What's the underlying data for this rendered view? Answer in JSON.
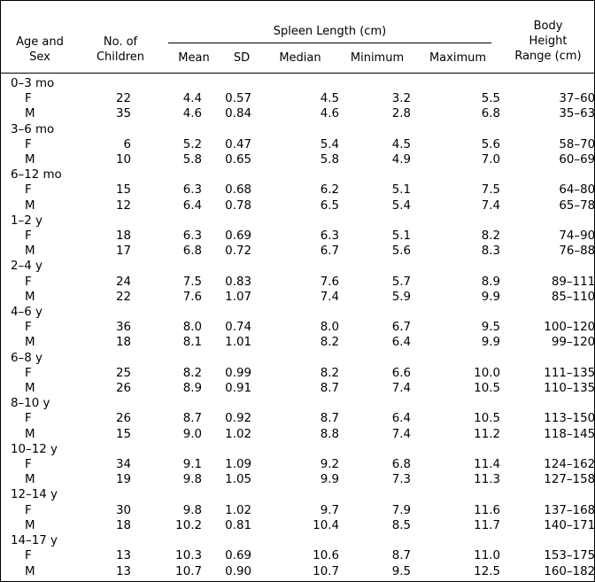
{
  "header": {
    "age_sex": [
      "Age and",
      "Sex"
    ],
    "children": [
      "No. of",
      "Children"
    ],
    "spleen_length": "Spleen Length (cm)",
    "mean": "Mean",
    "sd": "SD",
    "median": "Median",
    "minimum": "Minimum",
    "maximum": "Maximum",
    "body_height": [
      "Body",
      "Height",
      "Range (cm)"
    ]
  },
  "groups": [
    {
      "age": "0–3 mo",
      "rows": [
        {
          "sex": "F",
          "n": "22",
          "mean": "4.4",
          "sd": "0.57",
          "median": "4.5",
          "min": "3.2",
          "max": "5.5",
          "height": "37–60"
        },
        {
          "sex": "M",
          "n": "35",
          "mean": "4.6",
          "sd": "0.84",
          "median": "4.6",
          "min": "2.8",
          "max": "6.8",
          "height": "35–63"
        }
      ]
    },
    {
      "age": "3–6 mo",
      "rows": [
        {
          "sex": "F",
          "n": "6",
          "mean": "5.2",
          "sd": "0.47",
          "median": "5.4",
          "min": "4.5",
          "max": "5.6",
          "height": "58–70"
        },
        {
          "sex": "M",
          "n": "10",
          "mean": "5.8",
          "sd": "0.65",
          "median": "5.8",
          "min": "4.9",
          "max": "7.0",
          "height": "60–69"
        }
      ]
    },
    {
      "age": "6–12 mo",
      "rows": [
        {
          "sex": "F",
          "n": "15",
          "mean": "6.3",
          "sd": "0.68",
          "median": "6.2",
          "min": "5.1",
          "max": "7.5",
          "height": "64–80"
        },
        {
          "sex": "M",
          "n": "12",
          "mean": "6.4",
          "sd": "0.78",
          "median": "6.5",
          "min": "5.4",
          "max": "7.4",
          "height": "65–78"
        }
      ]
    },
    {
      "age": "1–2 y",
      "rows": [
        {
          "sex": "F",
          "n": "18",
          "mean": "6.3",
          "sd": "0.69",
          "median": "6.3",
          "min": "5.1",
          "max": "8.2",
          "height": "74–90"
        },
        {
          "sex": "M",
          "n": "17",
          "mean": "6.8",
          "sd": "0.72",
          "median": "6.7",
          "min": "5.6",
          "max": "8.3",
          "height": "76–88"
        }
      ]
    },
    {
      "age": "2–4 y",
      "rows": [
        {
          "sex": "F",
          "n": "24",
          "mean": "7.5",
          "sd": "0.83",
          "median": "7.6",
          "min": "5.7",
          "max": "8.9",
          "height": "89–111"
        },
        {
          "sex": "M",
          "n": "22",
          "mean": "7.6",
          "sd": "1.07",
          "median": "7.4",
          "min": "5.9",
          "max": "9.9",
          "height": "85–110"
        }
      ]
    },
    {
      "age": "4–6 y",
      "rows": [
        {
          "sex": "F",
          "n": "36",
          "mean": "8.0",
          "sd": "0.74",
          "median": "8.0",
          "min": "6.7",
          "max": "9.5",
          "height": "100–120"
        },
        {
          "sex": "M",
          "n": "18",
          "mean": "8.1",
          "sd": "1.01",
          "median": "8.2",
          "min": "6.4",
          "max": "9.9",
          "height": "99–120"
        }
      ]
    },
    {
      "age": "6–8 y",
      "rows": [
        {
          "sex": "F",
          "n": "25",
          "mean": "8.2",
          "sd": "0.99",
          "median": "8.2",
          "min": "6.6",
          "max": "10.0",
          "height": "111–135"
        },
        {
          "sex": "M",
          "n": "26",
          "mean": "8.9",
          "sd": "0.91",
          "median": "8.7",
          "min": "7.4",
          "max": "10.5",
          "height": "110–135"
        }
      ]
    },
    {
      "age": "8–10 y",
      "rows": [
        {
          "sex": "F",
          "n": "26",
          "mean": "8.7",
          "sd": "0.92",
          "median": "8.7",
          "min": "6.4",
          "max": "10.5",
          "height": "113–150"
        },
        {
          "sex": "M",
          "n": "15",
          "mean": "9.0",
          "sd": "1.02",
          "median": "8.8",
          "min": "7.4",
          "max": "11.2",
          "height": "118–145"
        }
      ]
    },
    {
      "age": "10–12 y",
      "rows": [
        {
          "sex": "F",
          "n": "34",
          "mean": "9.1",
          "sd": "1.09",
          "median": "9.2",
          "min": "6.8",
          "max": "11.4",
          "height": "124–162"
        },
        {
          "sex": "M",
          "n": "19",
          "mean": "9.8",
          "sd": "1.05",
          "median": "9.9",
          "min": "7.3",
          "max": "11.3",
          "height": "127–158"
        }
      ]
    },
    {
      "age": "12–14 y",
      "rows": [
        {
          "sex": "F",
          "n": "30",
          "mean": "9.8",
          "sd": "1.02",
          "median": "9.7",
          "min": "7.9",
          "max": "11.6",
          "height": "137–168"
        },
        {
          "sex": "M",
          "n": "18",
          "mean": "10.2",
          "sd": "0.81",
          "median": "10.4",
          "min": "8.5",
          "max": "11.7",
          "height": "140–171"
        }
      ]
    },
    {
      "age": "14–17 y",
      "rows": [
        {
          "sex": "F",
          "n": "13",
          "mean": "10.3",
          "sd": "0.69",
          "median": "10.6",
          "min": "8.7",
          "max": "11.0",
          "height": "153–175"
        },
        {
          "sex": "M",
          "n": "13",
          "mean": "10.7",
          "sd": "0.90",
          "median": "10.7",
          "min": "9.5",
          "max": "12.5",
          "height": "160–182"
        }
      ]
    }
  ]
}
